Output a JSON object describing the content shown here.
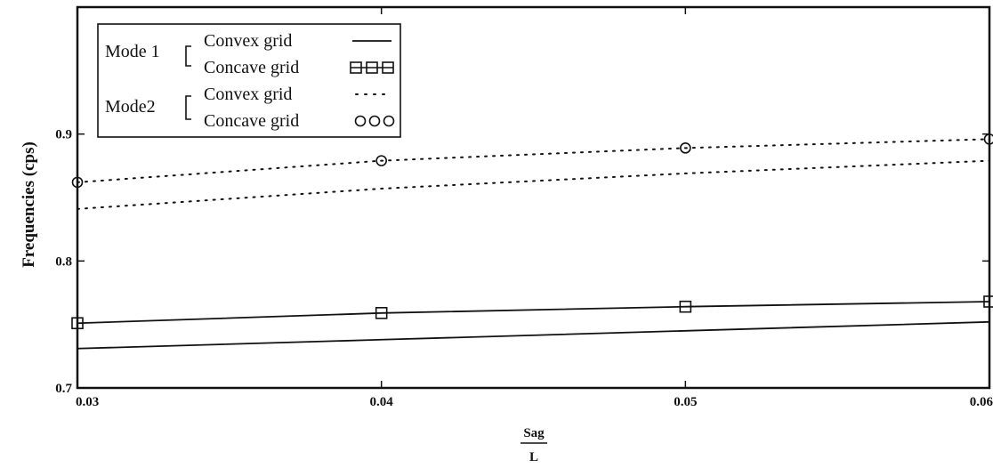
{
  "chart_data": {
    "type": "line",
    "title": "",
    "xlabel": {
      "numerator": "Sag",
      "denominator": "L"
    },
    "ylabel": "Frequencies (cps)",
    "xlim": [
      0.03,
      0.06
    ],
    "ylim": [
      0.7,
      1.0
    ],
    "x_ticks": [
      "0.03",
      "0.04",
      "0.05",
      "0.06"
    ],
    "y_ticks": [
      "0.7",
      "0.8",
      "0.9"
    ],
    "grid": false,
    "legend_position": "top-left",
    "legend_groups": [
      {
        "label": "Mode 1",
        "entries": [
          "Convex grid",
          "Concave grid"
        ]
      },
      {
        "label": "Mode2",
        "entries": [
          "Convex grid",
          "Concave grid"
        ]
      }
    ],
    "series": [
      {
        "group": "Mode 1",
        "name": "Convex grid",
        "style": "solid",
        "x": [
          0.03,
          0.04,
          0.05,
          0.06
        ],
        "values": [
          0.731,
          0.738,
          0.745,
          0.752
        ]
      },
      {
        "group": "Mode 1",
        "name": "Concave grid",
        "style": "solid-square",
        "x": [
          0.03,
          0.04,
          0.05,
          0.06
        ],
        "values": [
          0.751,
          0.759,
          0.764,
          0.768
        ]
      },
      {
        "group": "Mode2",
        "name": "Convex grid",
        "style": "dotted",
        "x": [
          0.03,
          0.04,
          0.05,
          0.06
        ],
        "values": [
          0.841,
          0.857,
          0.869,
          0.879
        ]
      },
      {
        "group": "Mode2",
        "name": "Concave grid",
        "style": "dotted-circle",
        "x": [
          0.03,
          0.04,
          0.05,
          0.06
        ],
        "values": [
          0.862,
          0.879,
          0.889,
          0.896
        ]
      }
    ]
  }
}
